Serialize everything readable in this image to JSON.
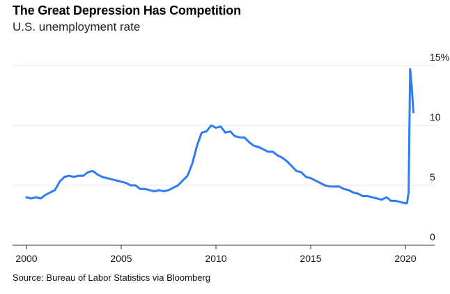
{
  "chart_data": {
    "type": "line",
    "title": "The Great Depression Has Competition",
    "subtitle": "U.S. unemployment rate",
    "source": "Source: Bureau of Labor Statistics via Bloomberg",
    "xlim": [
      2000,
      2020.75
    ],
    "ylim": [
      0,
      15
    ],
    "x_ticks": [
      2000,
      2005,
      2010,
      2015,
      2020
    ],
    "x_tick_labels": [
      "2000",
      "2005",
      "2010",
      "2015",
      "2020"
    ],
    "y_ticks": [
      0,
      5,
      10,
      15
    ],
    "y_tick_labels": [
      "0",
      "5",
      "10",
      "15%"
    ],
    "grid": true,
    "line_color": "#2c7cf6",
    "series": [
      {
        "x": [
          2000.0,
          2000.25,
          2000.5,
          2000.75,
          2001.0,
          2001.25,
          2001.5,
          2001.75,
          2002.0,
          2002.25,
          2002.5,
          2002.75,
          2003.0,
          2003.25,
          2003.5,
          2003.75,
          2004.0,
          2004.25,
          2004.5,
          2004.75,
          2005.0,
          2005.25,
          2005.5,
          2005.75,
          2006.0,
          2006.25,
          2006.5,
          2006.75,
          2007.0,
          2007.25,
          2007.5,
          2007.75,
          2008.0,
          2008.25,
          2008.5,
          2008.75,
          2009.0,
          2009.25,
          2009.5,
          2009.75,
          2010.0,
          2010.25,
          2010.5,
          2010.75,
          2011.0,
          2011.25,
          2011.5,
          2011.75,
          2012.0,
          2012.25,
          2012.5,
          2012.75,
          2013.0,
          2013.25,
          2013.5,
          2013.75,
          2014.0,
          2014.25,
          2014.5,
          2014.75,
          2015.0,
          2015.25,
          2015.5,
          2015.75,
          2016.0,
          2016.25,
          2016.5,
          2016.75,
          2017.0,
          2017.25,
          2017.5,
          2017.75,
          2018.0,
          2018.25,
          2018.5,
          2018.75,
          2019.0,
          2019.25,
          2019.5,
          2019.75,
          2020.0,
          2020.08,
          2020.17,
          2020.25,
          2020.33,
          2020.42
        ],
        "values": [
          4.0,
          3.9,
          4.0,
          3.9,
          4.2,
          4.4,
          4.6,
          5.3,
          5.7,
          5.8,
          5.7,
          5.8,
          5.8,
          6.1,
          6.2,
          5.9,
          5.7,
          5.6,
          5.5,
          5.4,
          5.3,
          5.2,
          5.0,
          5.0,
          4.7,
          4.7,
          4.6,
          4.5,
          4.6,
          4.5,
          4.6,
          4.8,
          5.0,
          5.4,
          5.8,
          6.8,
          8.3,
          9.4,
          9.5,
          10.0,
          9.8,
          9.9,
          9.4,
          9.5,
          9.1,
          9.0,
          9.0,
          8.6,
          8.3,
          8.2,
          8.0,
          7.8,
          7.8,
          7.5,
          7.3,
          7.0,
          6.6,
          6.2,
          6.1,
          5.7,
          5.6,
          5.4,
          5.2,
          5.0,
          4.9,
          4.9,
          4.9,
          4.7,
          4.6,
          4.4,
          4.3,
          4.1,
          4.1,
          4.0,
          3.9,
          3.8,
          4.0,
          3.7,
          3.7,
          3.6,
          3.5,
          3.5,
          4.4,
          14.7,
          13.3,
          11.1
        ]
      }
    ]
  }
}
